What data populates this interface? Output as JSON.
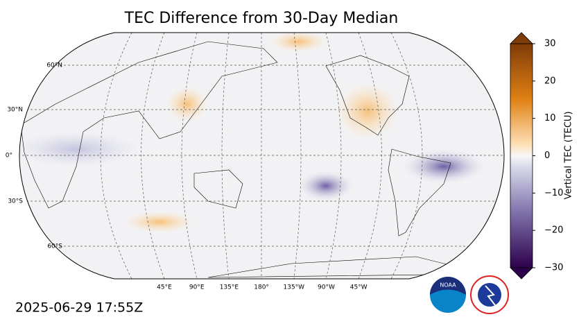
{
  "title": "TEC Difference from 30-Day Median",
  "timestamp": "2025-06-29 17:55Z",
  "map": {
    "lat_labels": [
      "60°N",
      "30°N",
      "0°",
      "30°S",
      "60°S"
    ],
    "lon_labels": [
      "45°E",
      "90°E",
      "135°E",
      "180°",
      "135°W",
      "90°W",
      "45°W"
    ]
  },
  "colorbar": {
    "label": "Vertical TEC (TECU)",
    "lim": [
      -30,
      30
    ],
    "ticks": [
      {
        "value": -30,
        "label": "−30"
      },
      {
        "value": -20,
        "label": "−20"
      },
      {
        "value": -10,
        "label": "−10"
      },
      0,
      10,
      20,
      30
    ]
  }
}
